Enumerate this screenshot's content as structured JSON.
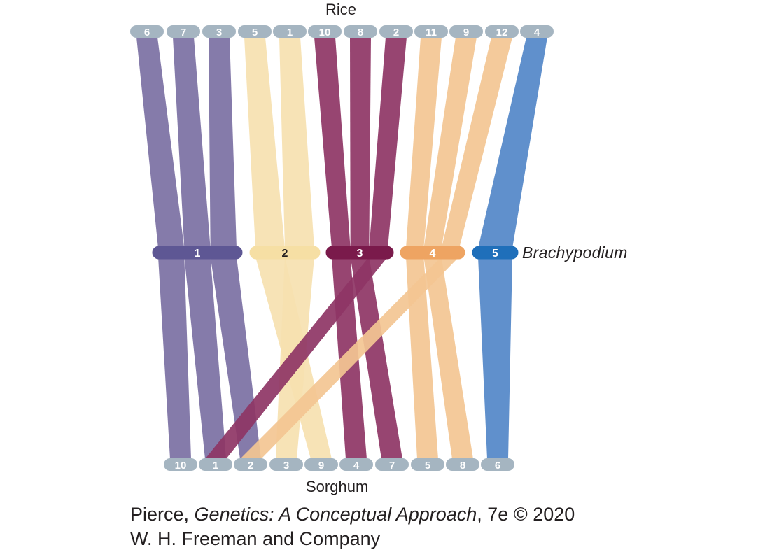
{
  "rice_label": "Rice",
  "sorghum_label": "Sorghum",
  "brachypodium_label": "Brachypodium",
  "credit": {
    "line1_prefix": "Pierce, ",
    "line1_title": "Genetics: A Conceptual Approach",
    "line1_suffix": ", 7e © 2020",
    "line2": "W. H. Freeman and Company"
  },
  "rice_chromosomes": [
    "6",
    "7",
    "3",
    "5",
    "1",
    "10",
    "8",
    "2",
    "11",
    "9",
    "12",
    "4"
  ],
  "sorghum_chromosomes": [
    "10",
    "1",
    "2",
    "3",
    "9",
    "4",
    "7",
    "5",
    "8",
    "6"
  ],
  "brachypodium_chromosomes": [
    {
      "label": "1",
      "color": "#5e5794"
    },
    {
      "label": "2",
      "color": "#f6dfa4"
    },
    {
      "label": "3",
      "color": "#7a1a4b"
    },
    {
      "label": "4",
      "color": "#eea462"
    },
    {
      "label": "5",
      "color": "#1f6fba"
    }
  ],
  "colors": {
    "chrom1_band": "#7b70a3",
    "chrom2_band": "#f6e1b0",
    "chrom3_band": "#8e3565",
    "chrom4_band": "#f3c592",
    "chrom5_band": "#5287c8",
    "rice_sorghum_pill": "#a5b5c1"
  },
  "connections": [
    {
      "brachy": "1",
      "rice": "6",
      "sorghum": "10"
    },
    {
      "brachy": "1",
      "rice": "7",
      "sorghum": "1"
    },
    {
      "brachy": "1",
      "rice": "3",
      "sorghum": "2"
    },
    {
      "brachy": "2",
      "rice": "5",
      "sorghum": "9"
    },
    {
      "brachy": "2",
      "rice": "1",
      "sorghum": "3"
    },
    {
      "brachy": "3",
      "rice": "10",
      "sorghum": "4"
    },
    {
      "brachy": "3",
      "rice": "8",
      "sorghum": "7"
    },
    {
      "brachy": "3",
      "rice": "2",
      "sorghum": "1"
    },
    {
      "brachy": "4",
      "rice": "11",
      "sorghum": "5"
    },
    {
      "brachy": "4",
      "rice": "9",
      "sorghum": "8"
    },
    {
      "brachy": "4",
      "rice": "12",
      "sorghum": "2"
    },
    {
      "brachy": "5",
      "rice": "4",
      "sorghum": "6"
    }
  ]
}
